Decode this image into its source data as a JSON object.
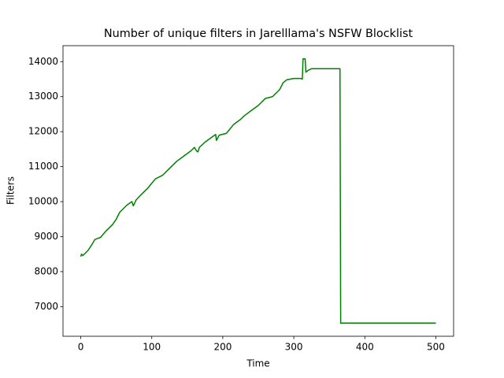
{
  "chart_data": {
    "type": "line",
    "title": "Number of unique filters in Jarelllama's NSFW Blocklist",
    "x_label": "Time",
    "y_label": "Filters",
    "x": [
      0,
      1,
      3,
      10,
      15,
      20,
      28,
      35,
      45,
      50,
      55,
      65,
      72,
      74,
      78,
      85,
      95,
      105,
      115,
      125,
      135,
      145,
      155,
      160,
      163,
      165,
      167,
      175,
      185,
      190,
      191,
      195,
      205,
      215,
      225,
      230,
      240,
      250,
      260,
      270,
      280,
      285,
      290,
      300,
      310,
      312,
      313,
      316,
      317,
      320,
      325,
      365,
      366,
      500
    ],
    "series": [
      {
        "name": "Filters",
        "color": "#008000",
        "values": [
          8430,
          8500,
          8460,
          8600,
          8750,
          8920,
          8980,
          9150,
          9350,
          9500,
          9700,
          9900,
          10000,
          9880,
          10050,
          10200,
          10400,
          10650,
          10750,
          10950,
          11150,
          11300,
          11450,
          11550,
          11450,
          11420,
          11550,
          11700,
          11850,
          11920,
          11750,
          11900,
          11950,
          12200,
          12350,
          12450,
          12600,
          12750,
          12950,
          13000,
          13200,
          13400,
          13480,
          13520,
          13520,
          13500,
          14080,
          14080,
          13700,
          13750,
          13800,
          13800,
          6530,
          6530
        ]
      }
    ],
    "xlim": [
      -25,
      525
    ],
    "ylim": [
      6153,
      14457
    ],
    "xticks": [
      0,
      100,
      200,
      300,
      400,
      500
    ],
    "yticks": [
      7000,
      8000,
      9000,
      10000,
      11000,
      12000,
      13000,
      14000
    ]
  }
}
